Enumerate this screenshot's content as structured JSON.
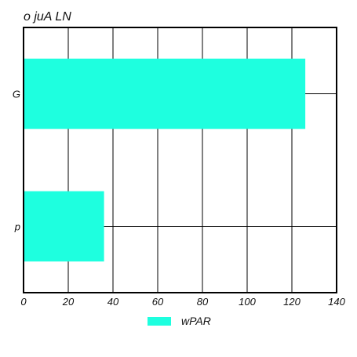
{
  "chart_data": {
    "type": "bar",
    "orientation": "horizontal",
    "title": "o   juA LN",
    "categories": [
      "G",
      "p"
    ],
    "series": [
      {
        "name": "wPAR",
        "values": [
          126,
          36
        ],
        "color": "#1effdf"
      }
    ],
    "xlim": [
      0,
      140
    ],
    "xticks": [
      0,
      20,
      40,
      60,
      80,
      100,
      120,
      140
    ],
    "grid": true,
    "legend": "bottom-center"
  }
}
